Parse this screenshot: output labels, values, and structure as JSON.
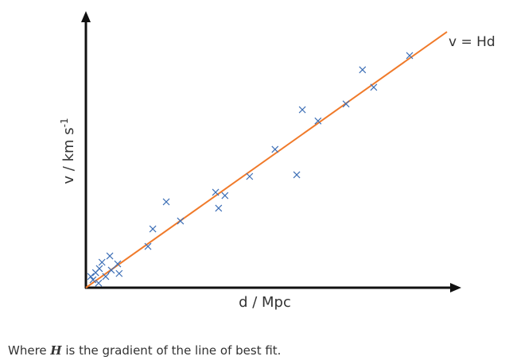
{
  "chart_data": {
    "type": "scatter",
    "x_label": "d / Mpc",
    "y_label": "v / km s",
    "y_label_sup": "-1",
    "xlim": [
      0,
      100
    ],
    "ylim": [
      0,
      100
    ],
    "color": "#3d6fb6",
    "series": [
      {
        "name": "v = Hd",
        "color": "#f07a2a",
        "x": [
          0,
          96.6
        ],
        "values": [
          0,
          93.6
        ]
      }
    ],
    "x": [
      1.3,
      2.6,
      3.6,
      4.3,
      5.3,
      6.4,
      6.8,
      8.5,
      8.9,
      3.4,
      1.9,
      16.6,
      17.9,
      21.5,
      25.3,
      34.7,
      37.2,
      35.5,
      43.8,
      50.6,
      56.4,
      57.9,
      62.1,
      69.6,
      74.0,
      77.0,
      86.6
    ],
    "values": [
      4.1,
      5.5,
      7.0,
      9.3,
      4.1,
      11.6,
      6.4,
      8.7,
      5.2,
      1.7,
      2.9,
      15.1,
      21.5,
      31.4,
      24.4,
      34.9,
      33.7,
      29.1,
      40.7,
      50.6,
      41.3,
      65.1,
      61.0,
      67.2,
      79.7,
      73.3,
      84.9
    ]
  },
  "caption": [
    "Where ",
    "H",
    " is the gradient of the line of best fit."
  ]
}
